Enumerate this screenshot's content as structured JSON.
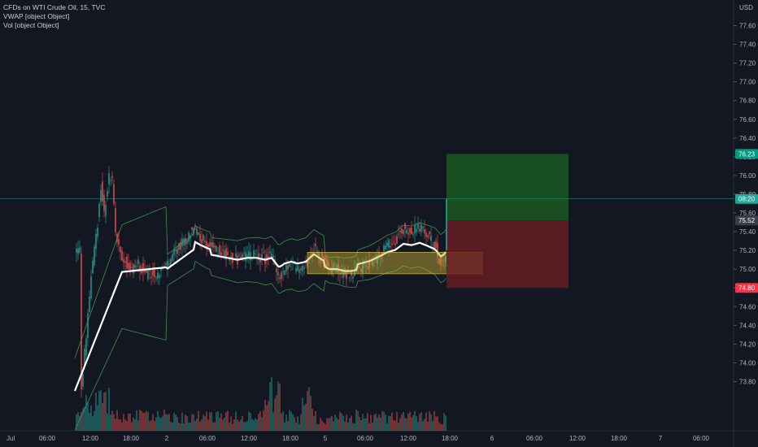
{
  "legend": {
    "title": "CFDs on WTI Crude Oil, 15, TVC",
    "vwap": "VWAP [object Object]",
    "vol": "Vol [object Object]"
  },
  "colors": {
    "background": "#131722",
    "up": "#26a69a",
    "down": "#ef5350",
    "vwap": "#ffffff",
    "band": "#4caf50",
    "profit": "#1b5e20",
    "loss": "#6b1e24",
    "zone": "#c9b535"
  },
  "chart_data": {
    "type": "candlestick",
    "currency": "USD",
    "y_ticks": [
      "77.60",
      "77.40",
      "77.20",
      "77.00",
      "76.80",
      "76.60",
      "76.40",
      "76.20",
      "76.00",
      "75.80",
      "75.60",
      "75.40",
      "75.20",
      "75.00",
      "74.80",
      "74.60",
      "74.40",
      "74.20",
      "74.00",
      "73.80"
    ],
    "x_ticks": [
      "Jul",
      "06:00",
      "12:00",
      "18:00",
      "2",
      "06:00",
      "12:00",
      "18:00",
      "5",
      "06:00",
      "12:00",
      "18:00",
      "6",
      "06:00",
      "12:00",
      "18:00",
      "7",
      "06:00"
    ],
    "ylim": [
      73.68,
      77.75
    ],
    "price_labels": [
      {
        "value": 76.23,
        "text": "76.23",
        "color": "#089981",
        "kind": "target"
      },
      {
        "value": 75.75,
        "text": "08:20",
        "color": "#26a69a",
        "kind": "last"
      },
      {
        "value": 75.52,
        "text": "75.52",
        "color": "#3a3e4a",
        "kind": "entry"
      },
      {
        "value": 74.8,
        "text": "74.80",
        "color": "#f23645",
        "kind": "stop"
      }
    ],
    "position": {
      "entry": 75.52,
      "target": 76.23,
      "stop": 74.8
    },
    "zone": {
      "top": 75.18,
      "bottom": 74.95
    }
  }
}
